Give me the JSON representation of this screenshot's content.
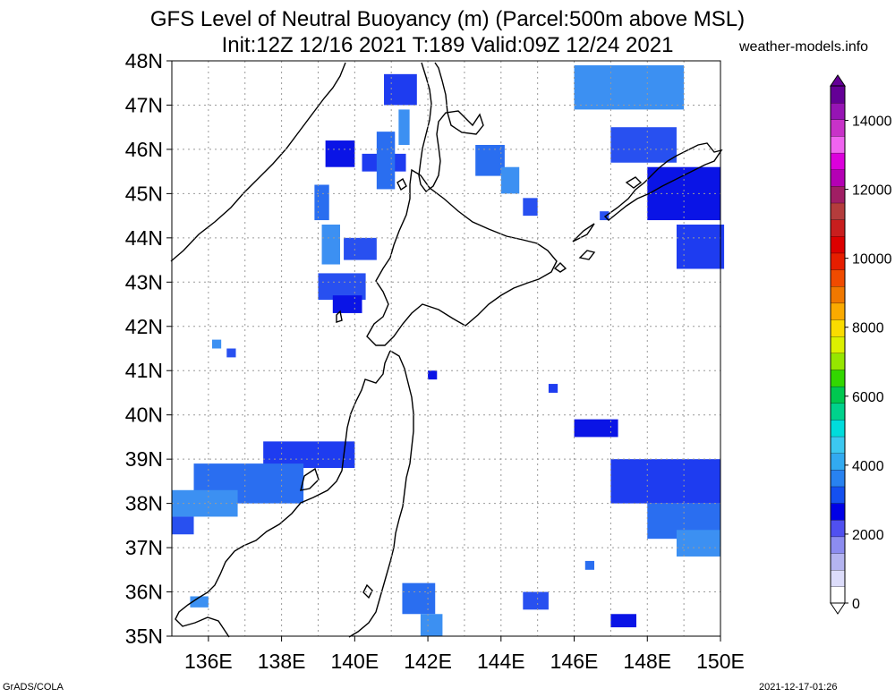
{
  "header": {
    "title_line1": "GFS Level of Neutral Buoyancy (m) (Parcel:500m above MSL)",
    "title_line2": "Init:12Z 12/16 2021 T:189 Valid:09Z 12/24 2021",
    "credit": "weather-models.info"
  },
  "map": {
    "lat_labels": [
      "48N",
      "47N",
      "46N",
      "45N",
      "44N",
      "43N",
      "42N",
      "41N",
      "40N",
      "39N",
      "38N",
      "37N",
      "36N",
      "35N"
    ],
    "lon_labels": [
      "136E",
      "138E",
      "140E",
      "142E",
      "144E",
      "146E",
      "148E",
      "150E"
    ],
    "lat_range": [
      35,
      48
    ],
    "lon_range": [
      135,
      150
    ],
    "region_features": [
      "Hokkaido",
      "Honshu (Tohoku)",
      "Sakhalin",
      "Kuril Islands",
      "Sea of Japan",
      "Pacific Ocean"
    ]
  },
  "colorbar": {
    "tick_labels": [
      "0",
      "2000",
      "4000",
      "6000",
      "8000",
      "10000",
      "12000",
      "14000"
    ],
    "unit": "m",
    "colors": [
      "#ffffff",
      "#dcdcfa",
      "#b4b4f0",
      "#8c8cf0",
      "#5050f0",
      "#0000e6",
      "#1450f0",
      "#2882f0",
      "#32aaf0",
      "#3cc8f0",
      "#00dcdc",
      "#00d28c",
      "#00c850",
      "#32d700",
      "#96e600",
      "#dcf000",
      "#fadc00",
      "#faaa00",
      "#f07800",
      "#f04b00",
      "#e61e00",
      "#dc0000",
      "#c81e1e",
      "#b43c3c",
      "#a01e64",
      "#b400b4",
      "#dc00dc",
      "#f064f0",
      "#c832c8",
      "#9614b4",
      "#640096"
    ]
  },
  "lnb_patches": [
    {
      "name": "sakhalin-west",
      "cells": [
        [
          46.2,
          139.2,
          0.6,
          0.8
        ],
        [
          45.9,
          140.2,
          0.4,
          1.2
        ],
        [
          45.2,
          138.9,
          0.8,
          0.4
        ],
        [
          44.3,
          139.1,
          0.9,
          0.5
        ],
        [
          44.0,
          139.7,
          0.5,
          0.9
        ]
      ]
    },
    {
      "name": "okhotsk-north",
      "cells": [
        [
          47.7,
          140.8,
          0.7,
          0.9
        ],
        [
          46.4,
          140.6,
          1.3,
          0.5
        ],
        [
          46.9,
          141.2,
          0.8,
          0.3
        ]
      ]
    },
    {
      "name": "okhotsk-east",
      "cells": [
        [
          46.1,
          143.3,
          0.7,
          0.8
        ],
        [
          45.6,
          144.0,
          0.6,
          0.5
        ],
        [
          44.9,
          144.6,
          0.4,
          0.4
        ]
      ]
    },
    {
      "name": "kuril-north",
      "cells": [
        [
          47.9,
          146.0,
          1.0,
          3.0
        ],
        [
          46.5,
          147.0,
          0.8,
          1.8
        ],
        [
          45.6,
          148.0,
          1.2,
          2.0
        ],
        [
          44.3,
          148.8,
          1.0,
          1.3
        ]
      ]
    },
    {
      "name": "hokkaido-west",
      "cells": [
        [
          43.2,
          139.0,
          0.6,
          1.3
        ],
        [
          42.7,
          139.4,
          0.4,
          0.8
        ]
      ]
    },
    {
      "name": "pacific-east",
      "cells": [
        [
          39.9,
          146.0,
          0.4,
          1.2
        ],
        [
          39.0,
          147.0,
          1.0,
          3.0
        ],
        [
          38.0,
          148.0,
          0.8,
          2.0
        ],
        [
          37.4,
          148.8,
          0.6,
          1.2
        ]
      ]
    },
    {
      "name": "sea-of-japan",
      "cells": [
        [
          39.4,
          137.5,
          0.6,
          2.5
        ],
        [
          38.9,
          135.6,
          0.9,
          3.0
        ],
        [
          38.3,
          135.0,
          0.6,
          1.8
        ],
        [
          37.7,
          135.0,
          0.4,
          0.6
        ]
      ]
    },
    {
      "name": "south-east",
      "cells": [
        [
          36.2,
          141.3,
          0.7,
          0.9
        ],
        [
          35.5,
          141.8,
          0.5,
          0.6
        ],
        [
          36.0,
          144.6,
          0.4,
          0.7
        ],
        [
          35.5,
          147.0,
          0.3,
          0.7
        ]
      ]
    },
    {
      "name": "isolated",
      "cells": [
        [
          41.7,
          136.1,
          0.2,
          0.25
        ],
        [
          41.5,
          136.5,
          0.2,
          0.25
        ],
        [
          41.0,
          142.0,
          0.2,
          0.25
        ],
        [
          40.7,
          145.3,
          0.2,
          0.25
        ],
        [
          36.7,
          146.3,
          0.2,
          0.25
        ],
        [
          35.9,
          135.5,
          0.25,
          0.5
        ],
        [
          44.6,
          146.7,
          0.2,
          0.25
        ]
      ]
    }
  ],
  "footer": {
    "left": "GrADS/COLA",
    "right": "2021-12-17-01:26"
  }
}
